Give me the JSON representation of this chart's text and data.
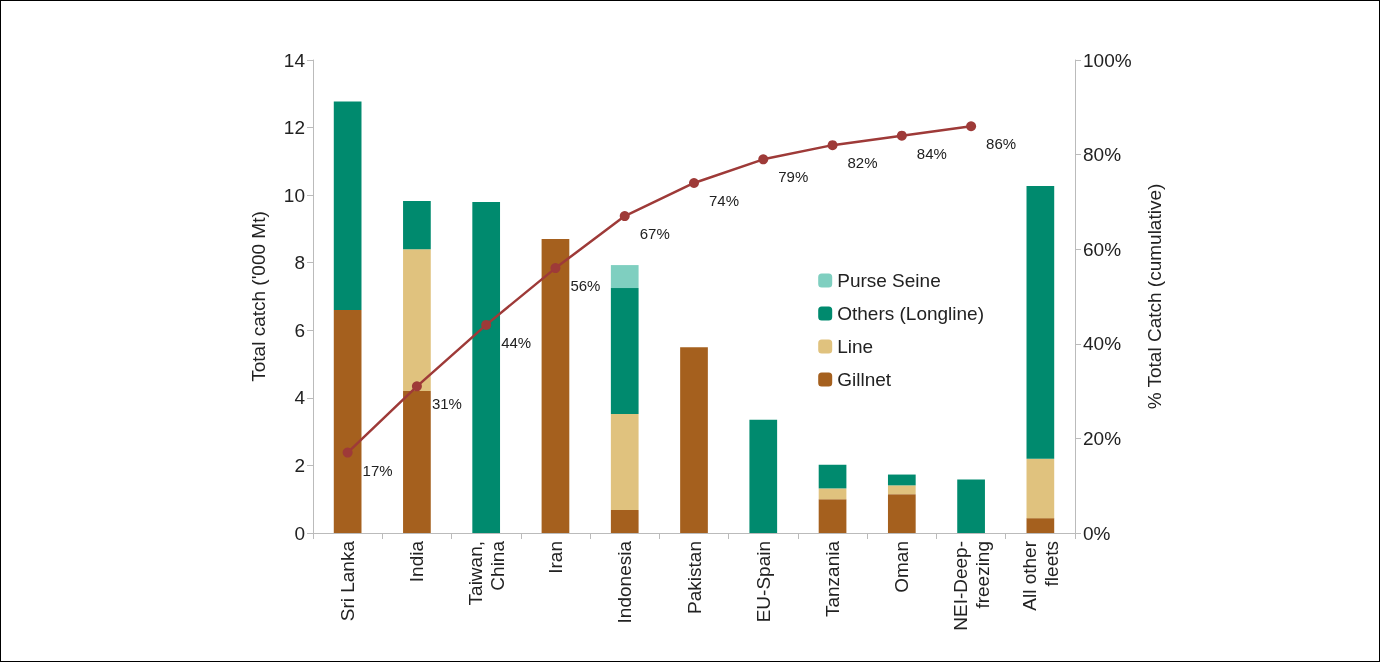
{
  "chart_data": {
    "type": "bar",
    "stacked": true,
    "categories": [
      "Sri Lanka",
      "India",
      "Taiwan, China",
      "Iran",
      "Indonesia",
      "Pakistan",
      "EU-Spain",
      "Tanzania",
      "Oman",
      "NEI-Deep-freezing",
      "All other fleets"
    ],
    "series": [
      {
        "name": "Gillnet",
        "color": "#a5601e",
        "values": [
          6.6,
          4.2,
          0,
          8.7,
          0.68,
          5.5,
          0,
          1.0,
          1.15,
          0,
          0.44
        ]
      },
      {
        "name": "Line",
        "color": "#e0c27e",
        "values": [
          0,
          4.2,
          0,
          0,
          2.84,
          0,
          0,
          0.32,
          0.26,
          0,
          1.76
        ]
      },
      {
        "name": "Others (Longline)",
        "color": "#008a6e",
        "values": [
          6.17,
          1.43,
          9.8,
          0,
          3.73,
          0,
          3.35,
          0.7,
          0.32,
          1.58,
          8.07
        ]
      },
      {
        "name": "Purse Seine",
        "color": "#7fcfc0",
        "values": [
          0,
          0,
          0,
          0,
          0.68,
          0,
          0,
          0,
          0,
          0,
          0
        ]
      },
      {
        "type": "line",
        "axis": "y2",
        "color": "#9e3a38",
        "marker": "circle",
        "values": [
          17,
          31,
          44,
          56,
          67,
          74,
          79,
          82,
          84,
          86,
          null
        ],
        "value_labels": [
          "17%",
          "31%",
          "44%",
          "56%",
          "67%",
          "74%",
          "79%",
          "82%",
          "84%",
          "86%",
          null
        ]
      }
    ],
    "ylabel": "Total catch ('000 Mt)",
    "y2label": "% Total Catch (cumulative)",
    "ylim": [
      0,
      14
    ],
    "yticks": [
      0,
      2,
      4,
      6,
      8,
      10,
      12,
      14
    ],
    "y2lim": [
      0,
      100
    ],
    "y2ticks": [
      {
        "value": 0,
        "label": "0%"
      },
      {
        "value": 20,
        "label": "20%"
      },
      {
        "value": 40,
        "label": "40%"
      },
      {
        "value": 60,
        "label": "60%"
      },
      {
        "value": 80,
        "label": "80%"
      },
      {
        "value": 100,
        "label": "100%"
      }
    ],
    "legend": "right",
    "grid": false
  }
}
